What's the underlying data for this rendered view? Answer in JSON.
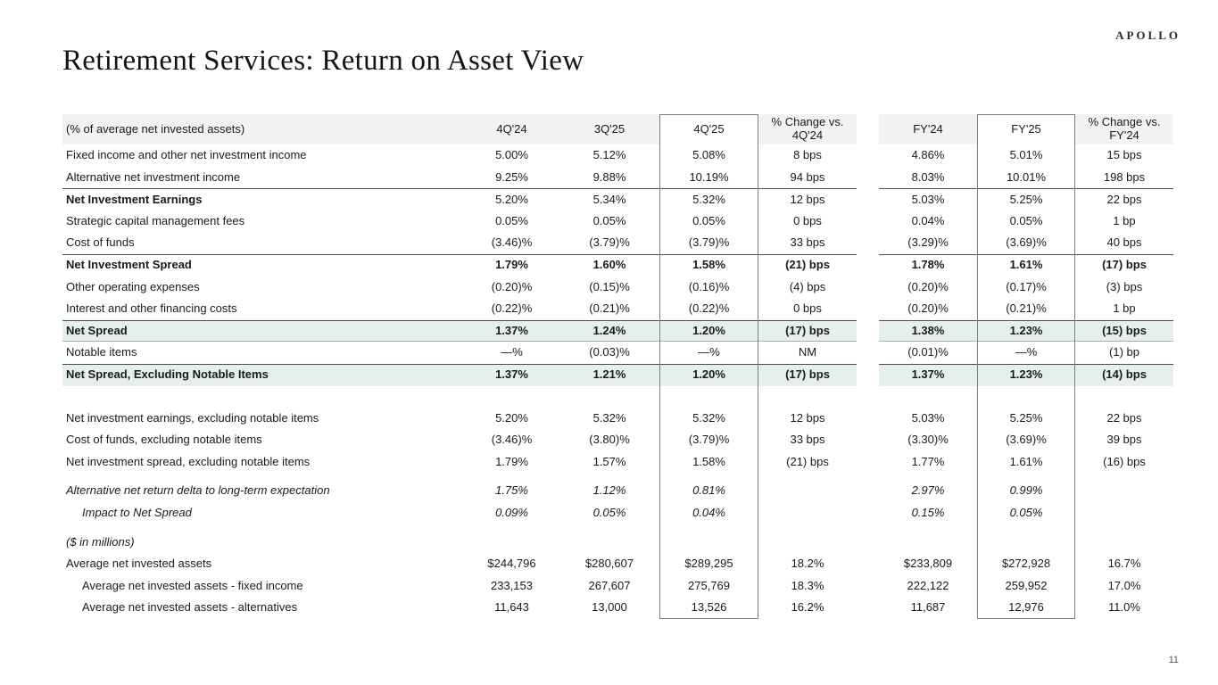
{
  "page": {
    "logo": "APOLLO",
    "title": "Retirement Services: Return on Asset View",
    "page_number": "11"
  },
  "colors": {
    "highlight_green": "#e6f0ea",
    "header_gray": "#f2f2f2",
    "line_dark": "#4d4d4d",
    "line_light": "#adadad",
    "box_border": "#7f7f7f"
  },
  "table": {
    "header": {
      "label": "(% of average net invested assets)",
      "cols": [
        "4Q'24",
        "3Q'25",
        "4Q'25",
        "% Change vs. 4Q'24",
        "FY'24",
        "FY'25",
        "% Change vs. FY'24"
      ]
    },
    "rows": [
      {
        "label": "Fixed income and other net investment income",
        "values": [
          "5.00%",
          "5.12%",
          "5.08%",
          "8 bps",
          "4.86%",
          "5.01%",
          "15 bps"
        ]
      },
      {
        "label": "Alternative net investment income",
        "values": [
          "9.25%",
          "9.88%",
          "10.19%",
          "94 bps",
          "8.03%",
          "10.01%",
          "198 bps"
        ]
      },
      {
        "label": "Net Investment Earnings",
        "values": [
          "5.20%",
          "5.34%",
          "5.32%",
          "12 bps",
          "5.03%",
          "5.25%",
          "22 bps"
        ],
        "bold_label": true,
        "line_top": true
      },
      {
        "label": "Strategic capital management fees",
        "values": [
          "0.05%",
          "0.05%",
          "0.05%",
          "0 bps",
          "0.04%",
          "0.05%",
          "1 bp"
        ]
      },
      {
        "label": "Cost of funds",
        "values": [
          "(3.46)%",
          "(3.79)%",
          "(3.79)%",
          "33 bps",
          "(3.29)%",
          "(3.69)%",
          "40 bps"
        ]
      },
      {
        "label": "Net Investment Spread",
        "values": [
          "1.79%",
          "1.60%",
          "1.58%",
          "(21) bps",
          "1.78%",
          "1.61%",
          "(17) bps"
        ],
        "bold_label": true,
        "bold_values": true,
        "line_top": true
      },
      {
        "label": "Other operating expenses",
        "values": [
          "(0.20)%",
          "(0.15)%",
          "(0.16)%",
          "(4) bps",
          "(0.20)%",
          "(0.17)%",
          "(3) bps"
        ]
      },
      {
        "label": "Interest and other financing costs",
        "values": [
          "(0.22)%",
          "(0.21)%",
          "(0.22)%",
          "0 bps",
          "(0.20)%",
          "(0.21)%",
          "1 bp"
        ]
      },
      {
        "label": "Net Spread",
        "values": [
          "1.37%",
          "1.24%",
          "1.20%",
          "(17) bps",
          "1.38%",
          "1.23%",
          "(15) bps"
        ],
        "bold_label": true,
        "bold_values": true,
        "line_top": true,
        "line_bottom": true,
        "highlight": true
      },
      {
        "label": "Notable items",
        "values": [
          "—%",
          "(0.03)%",
          "—%",
          "NM",
          "(0.01)%",
          "—%",
          "(1) bp"
        ]
      },
      {
        "label": "Net Spread, Excluding Notable Items",
        "values": [
          "1.37%",
          "1.21%",
          "1.20%",
          "(17) bps",
          "1.37%",
          "1.23%",
          "(14) bps"
        ],
        "bold_label": true,
        "bold_values": true,
        "line_top": true,
        "highlight": true
      },
      {
        "spacer": true,
        "h": 24
      },
      {
        "label": "Net investment earnings, excluding notable items",
        "values": [
          "5.20%",
          "5.32%",
          "5.32%",
          "12 bps",
          "5.03%",
          "5.25%",
          "22 bps"
        ]
      },
      {
        "label": "Cost of funds, excluding notable items",
        "values": [
          "(3.46)%",
          "(3.80)%",
          "(3.79)%",
          "33 bps",
          "(3.30)%",
          "(3.69)%",
          "39 bps"
        ]
      },
      {
        "label": "Net investment spread, excluding notable items",
        "values": [
          "1.79%",
          "1.57%",
          "1.58%",
          "(21) bps",
          "1.77%",
          "1.61%",
          "(16) bps"
        ]
      },
      {
        "spacer": true,
        "h": 8
      },
      {
        "label": "Alternative net return delta to long-term expectation",
        "values": [
          "1.75%",
          "1.12%",
          "0.81%",
          "",
          "2.97%",
          "0.99%",
          ""
        ],
        "italic": true
      },
      {
        "label": "Impact to Net Spread",
        "values": [
          "0.09%",
          "0.05%",
          "0.04%",
          "",
          "0.15%",
          "0.05%",
          ""
        ],
        "italic": true,
        "indent": 1
      },
      {
        "spacer": true,
        "h": 8
      },
      {
        "label": "($ in millions)",
        "values": [
          "",
          "",
          "",
          "",
          "",
          "",
          ""
        ],
        "italic": true
      },
      {
        "label": "Average net invested assets",
        "values": [
          "$244,796",
          "$280,607",
          "$289,295",
          "18.2%",
          "$233,809",
          "$272,928",
          "16.7%"
        ]
      },
      {
        "label": "Average net invested assets - fixed income",
        "values": [
          "233,153",
          "267,607",
          "275,769",
          "18.3%",
          "222,122",
          "259,952",
          "17.0%"
        ],
        "indent": 1
      },
      {
        "label": "Average net invested assets - alternatives",
        "values": [
          "11,643",
          "13,000",
          "13,526",
          "16.2%",
          "11,687",
          "12,976",
          "11.0%"
        ],
        "indent": 1
      }
    ]
  }
}
